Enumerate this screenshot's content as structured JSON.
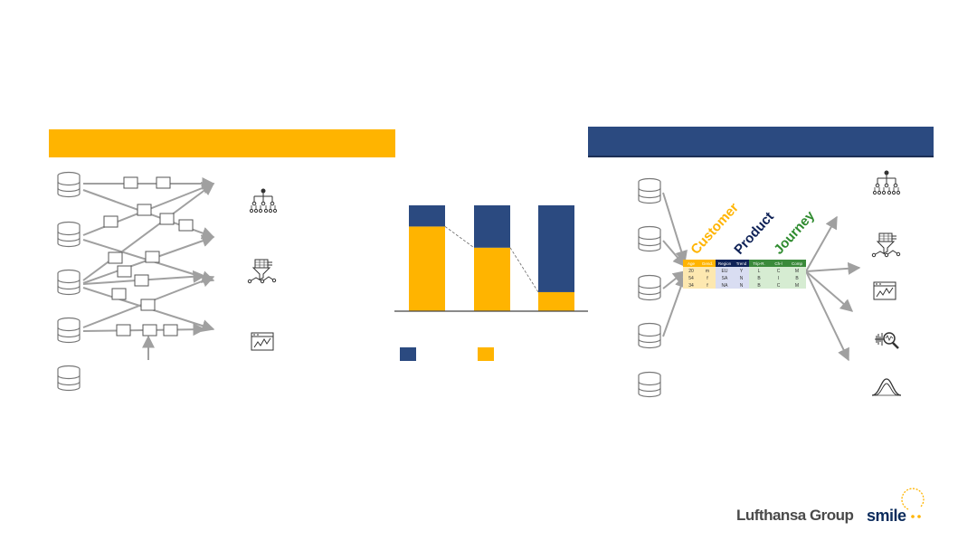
{
  "colors": {
    "accent_yellow": "#ffb400",
    "brand_navy": "#2b4a80",
    "arrow_grey": "#a0a0a0",
    "customer_text": "#ffb400",
    "product_text": "#0f2257",
    "journey_text": "#2e8b2e"
  },
  "chart_data": {
    "type": "bar",
    "stacked": true,
    "categories": [
      "",
      "",
      ""
    ],
    "series": [
      {
        "color": "#2b4a80",
        "values": [
          20,
          40,
          82
        ]
      },
      {
        "color": "#ffb400",
        "values": [
          80,
          60,
          18
        ]
      }
    ],
    "ylim": [
      0,
      100
    ],
    "grid": false,
    "legend": "bottom"
  },
  "diagram": {
    "title_words": [
      "Customer",
      "Product",
      "Journey"
    ],
    "table_headers": [
      "Age",
      "Gend.",
      "Region",
      "Trend",
      "Trip-R.",
      "Ch-l",
      "Comp"
    ],
    "table_rows": [
      [
        "20",
        "m",
        "EU",
        "Y",
        "L",
        "C",
        "M"
      ],
      [
        "54",
        "f",
        "SA",
        "N",
        "B",
        "I",
        "B"
      ],
      [
        "34",
        "f",
        "NA",
        "N",
        "B",
        "C",
        "M"
      ]
    ],
    "icons": [
      "database-icon",
      "hierarchy-icon",
      "filter-icon",
      "dashboard-icon",
      "analytics-icon",
      "distribution-icon"
    ]
  },
  "footer": {
    "brand_primary": "Lufthansa Group",
    "brand_secondary": "smile"
  }
}
